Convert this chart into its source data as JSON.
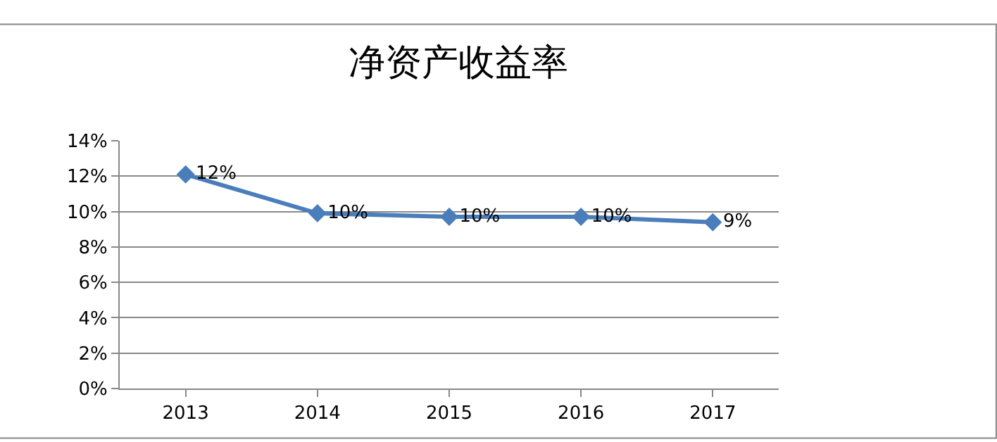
{
  "chart_data": {
    "type": "line",
    "title": "净资产收益率",
    "categories": [
      "2013",
      "2014",
      "2015",
      "2016",
      "2017"
    ],
    "series": [
      {
        "color": "#4a7ebb",
        "values": [
          12.1,
          9.9,
          9.7,
          9.7,
          9.4
        ],
        "value_labels": [
          "12%",
          "10%",
          "10%",
          "10%",
          "9%"
        ]
      }
    ],
    "ylim": [
      0,
      14
    ],
    "yticks": [
      {
        "value": 0,
        "label": "0%"
      },
      {
        "value": 2,
        "label": "2%"
      },
      {
        "value": 4,
        "label": "4%"
      },
      {
        "value": 6,
        "label": "6%"
      },
      {
        "value": 8,
        "label": "8%"
      },
      {
        "value": 10,
        "label": "10%"
      },
      {
        "value": 12,
        "label": "12%"
      },
      {
        "value": 14,
        "label": "14%"
      }
    ],
    "grid": "y",
    "marker": "diamond",
    "line_style": "solid"
  }
}
